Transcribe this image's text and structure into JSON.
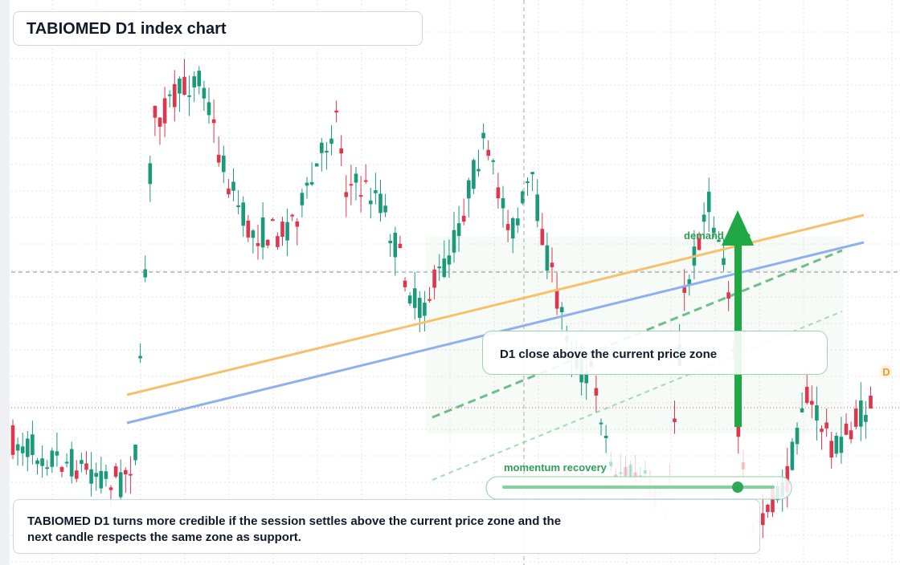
{
  "header": {
    "title": "TABIOMED D1 index chart"
  },
  "zone": {
    "label": "demand zone"
  },
  "callout": {
    "text": "D1 close above the current price zone"
  },
  "momentum": {
    "label": "momentum recovery"
  },
  "note": {
    "lines": [
      "TABIOMED D1 turns more credible if the session settles above the current price zone and the",
      "next candle respects the same zone as support."
    ]
  },
  "marker": {
    "label": "D"
  }
}
